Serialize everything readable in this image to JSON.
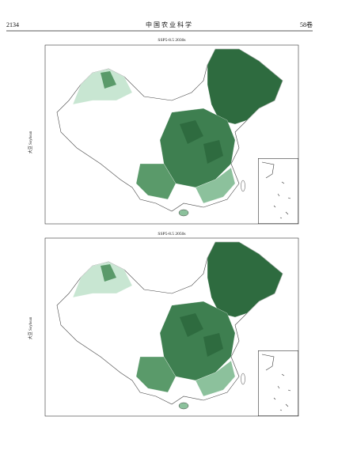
{
  "header": {
    "page_number": "2134",
    "journal": "中 国 农 业 科 学",
    "volume": "58卷"
  },
  "figures": [
    {
      "title": "SSP5-8.5 2030s",
      "y_label": "大豆 Soybean"
    },
    {
      "title": "SSP5-8.5 2050s",
      "y_label": "大豆 Soybean"
    }
  ]
}
